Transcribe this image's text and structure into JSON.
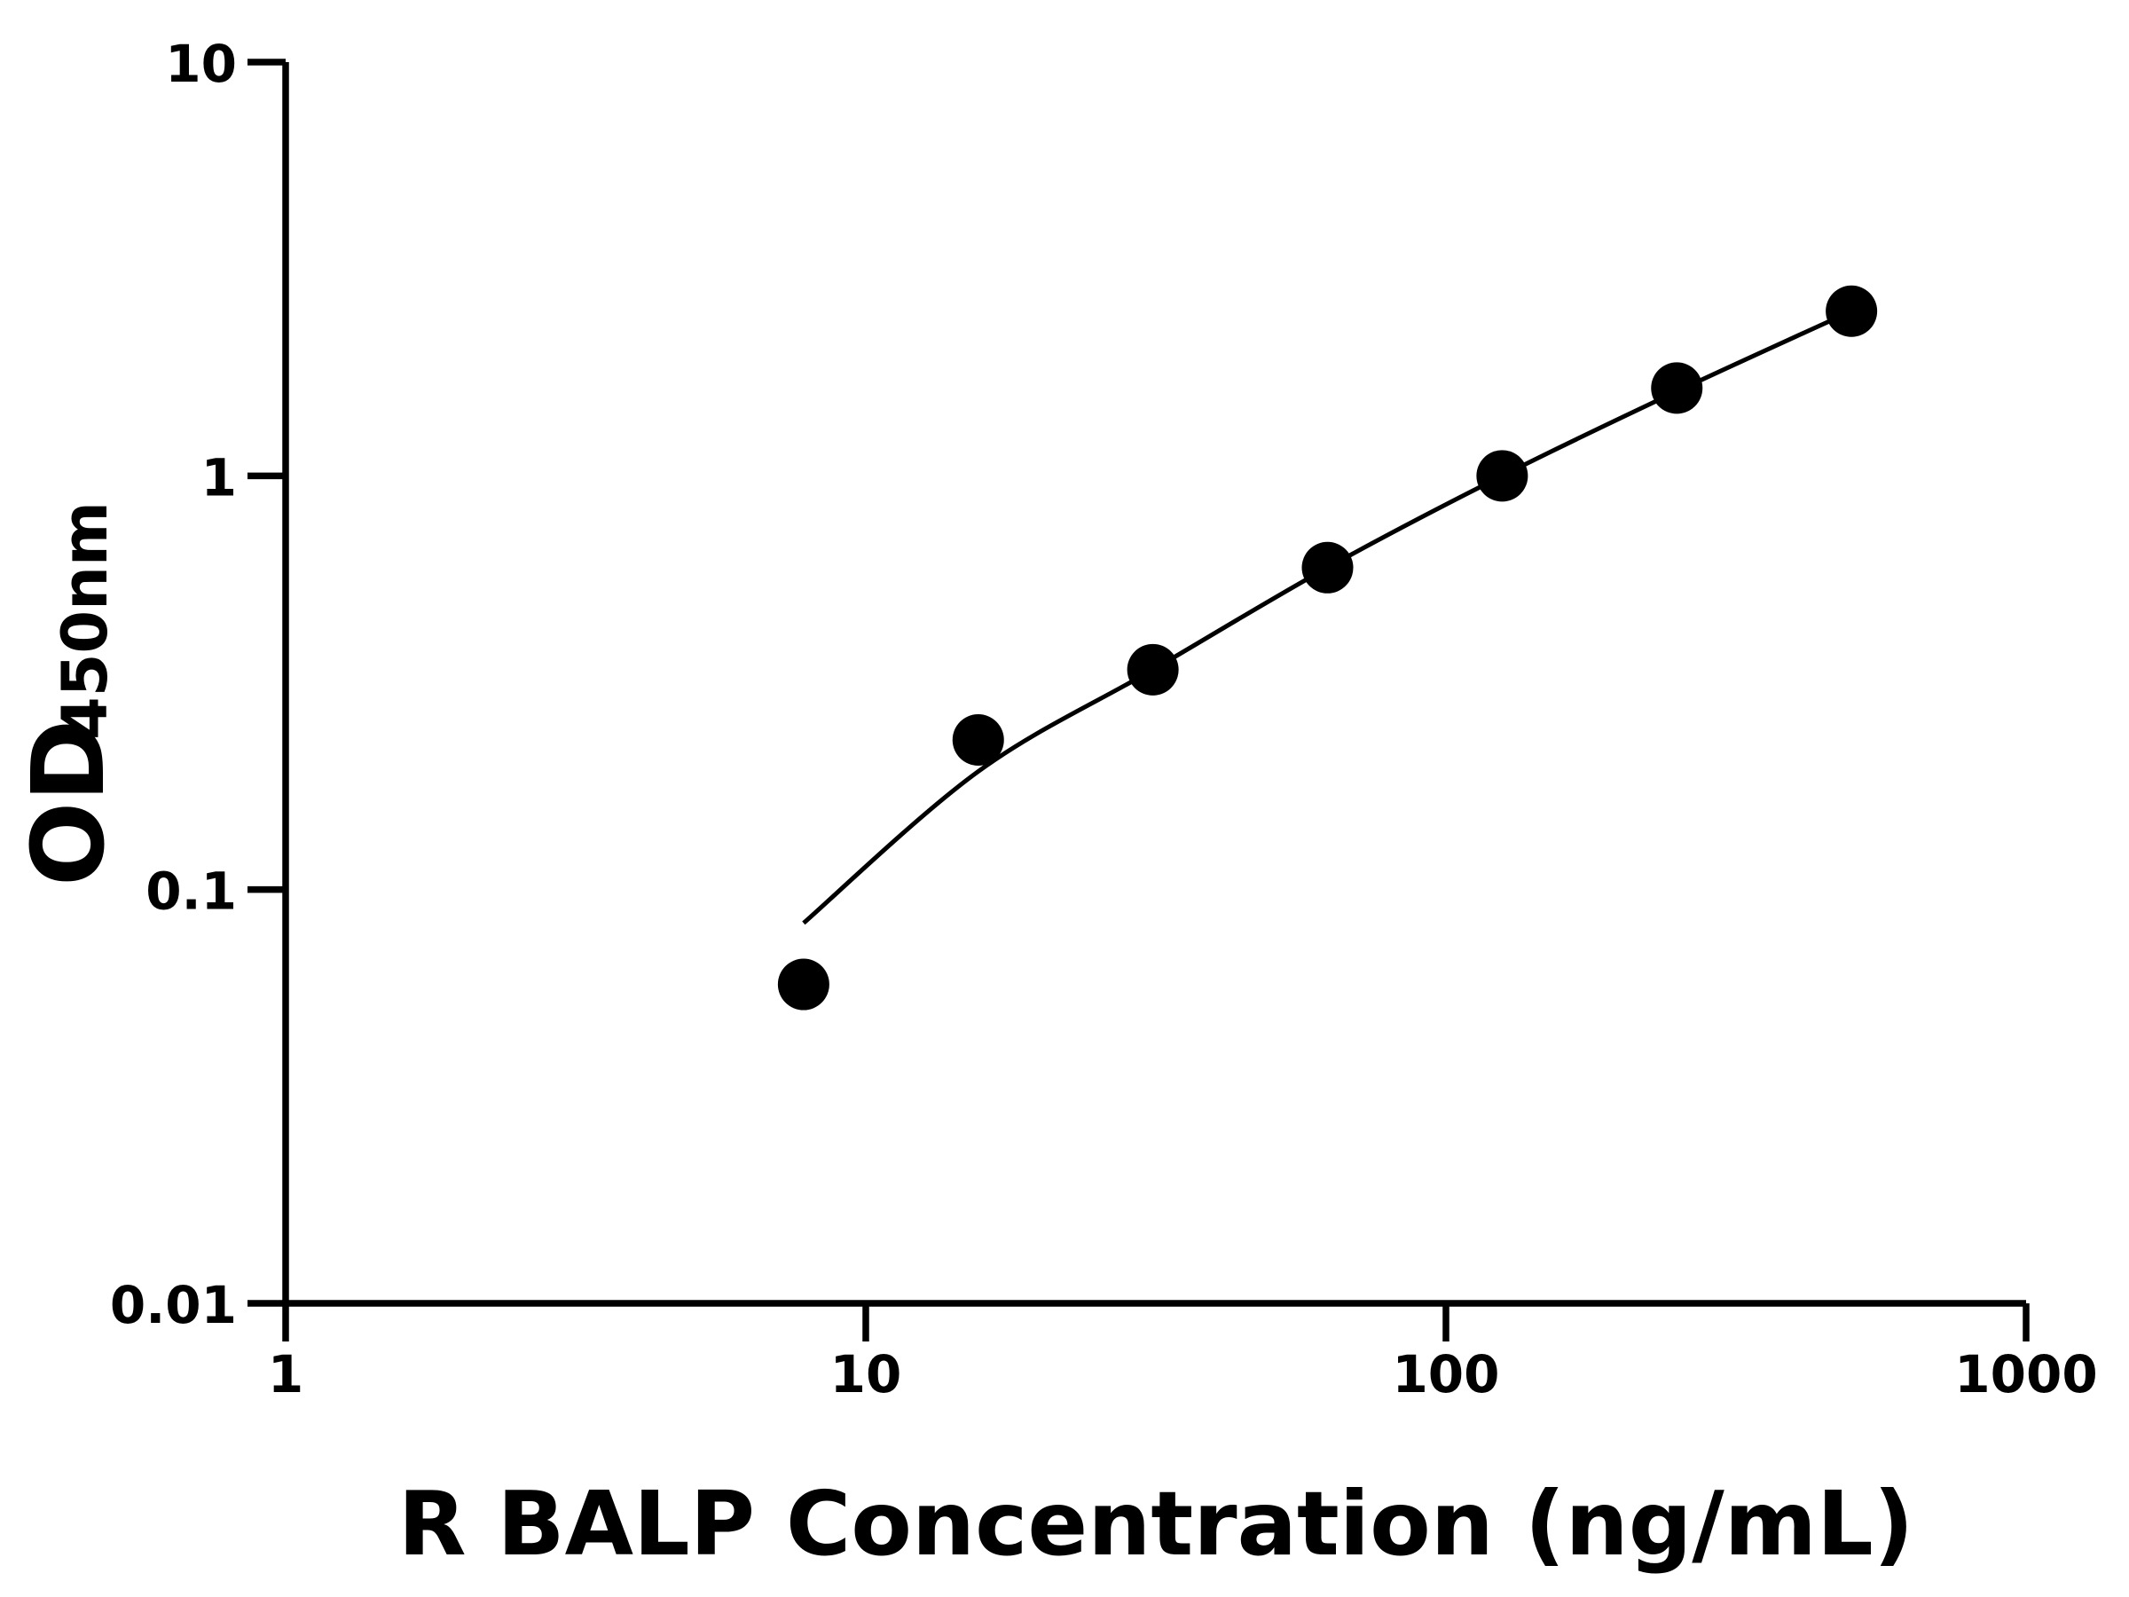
{
  "chart_data": {
    "type": "scatter",
    "x_label": "R BALP Concentration (ng/mL)",
    "y_label": "OD",
    "y_label_subscript": "450nm",
    "x": [
      7.8125,
      15.625,
      31.25,
      62.5,
      125,
      250,
      500
    ],
    "values": [
      0.059,
      0.23,
      0.34,
      0.6,
      1.0,
      1.63,
      2.5
    ],
    "color": "#000000",
    "fit": {
      "x": [
        7.8125,
        15.625,
        31.25,
        62.5,
        125,
        250,
        500
      ],
      "values": [
        0.083,
        0.193,
        0.34,
        0.6,
        1.0,
        1.6,
        2.5
      ]
    },
    "xscale": "log",
    "yscale": "log",
    "xlim": [
      1,
      1000
    ],
    "ylim": [
      0.01,
      10
    ],
    "xticks": [
      1,
      10,
      100,
      1000
    ],
    "yticks": [
      0.01,
      0.1,
      1,
      10
    ]
  }
}
